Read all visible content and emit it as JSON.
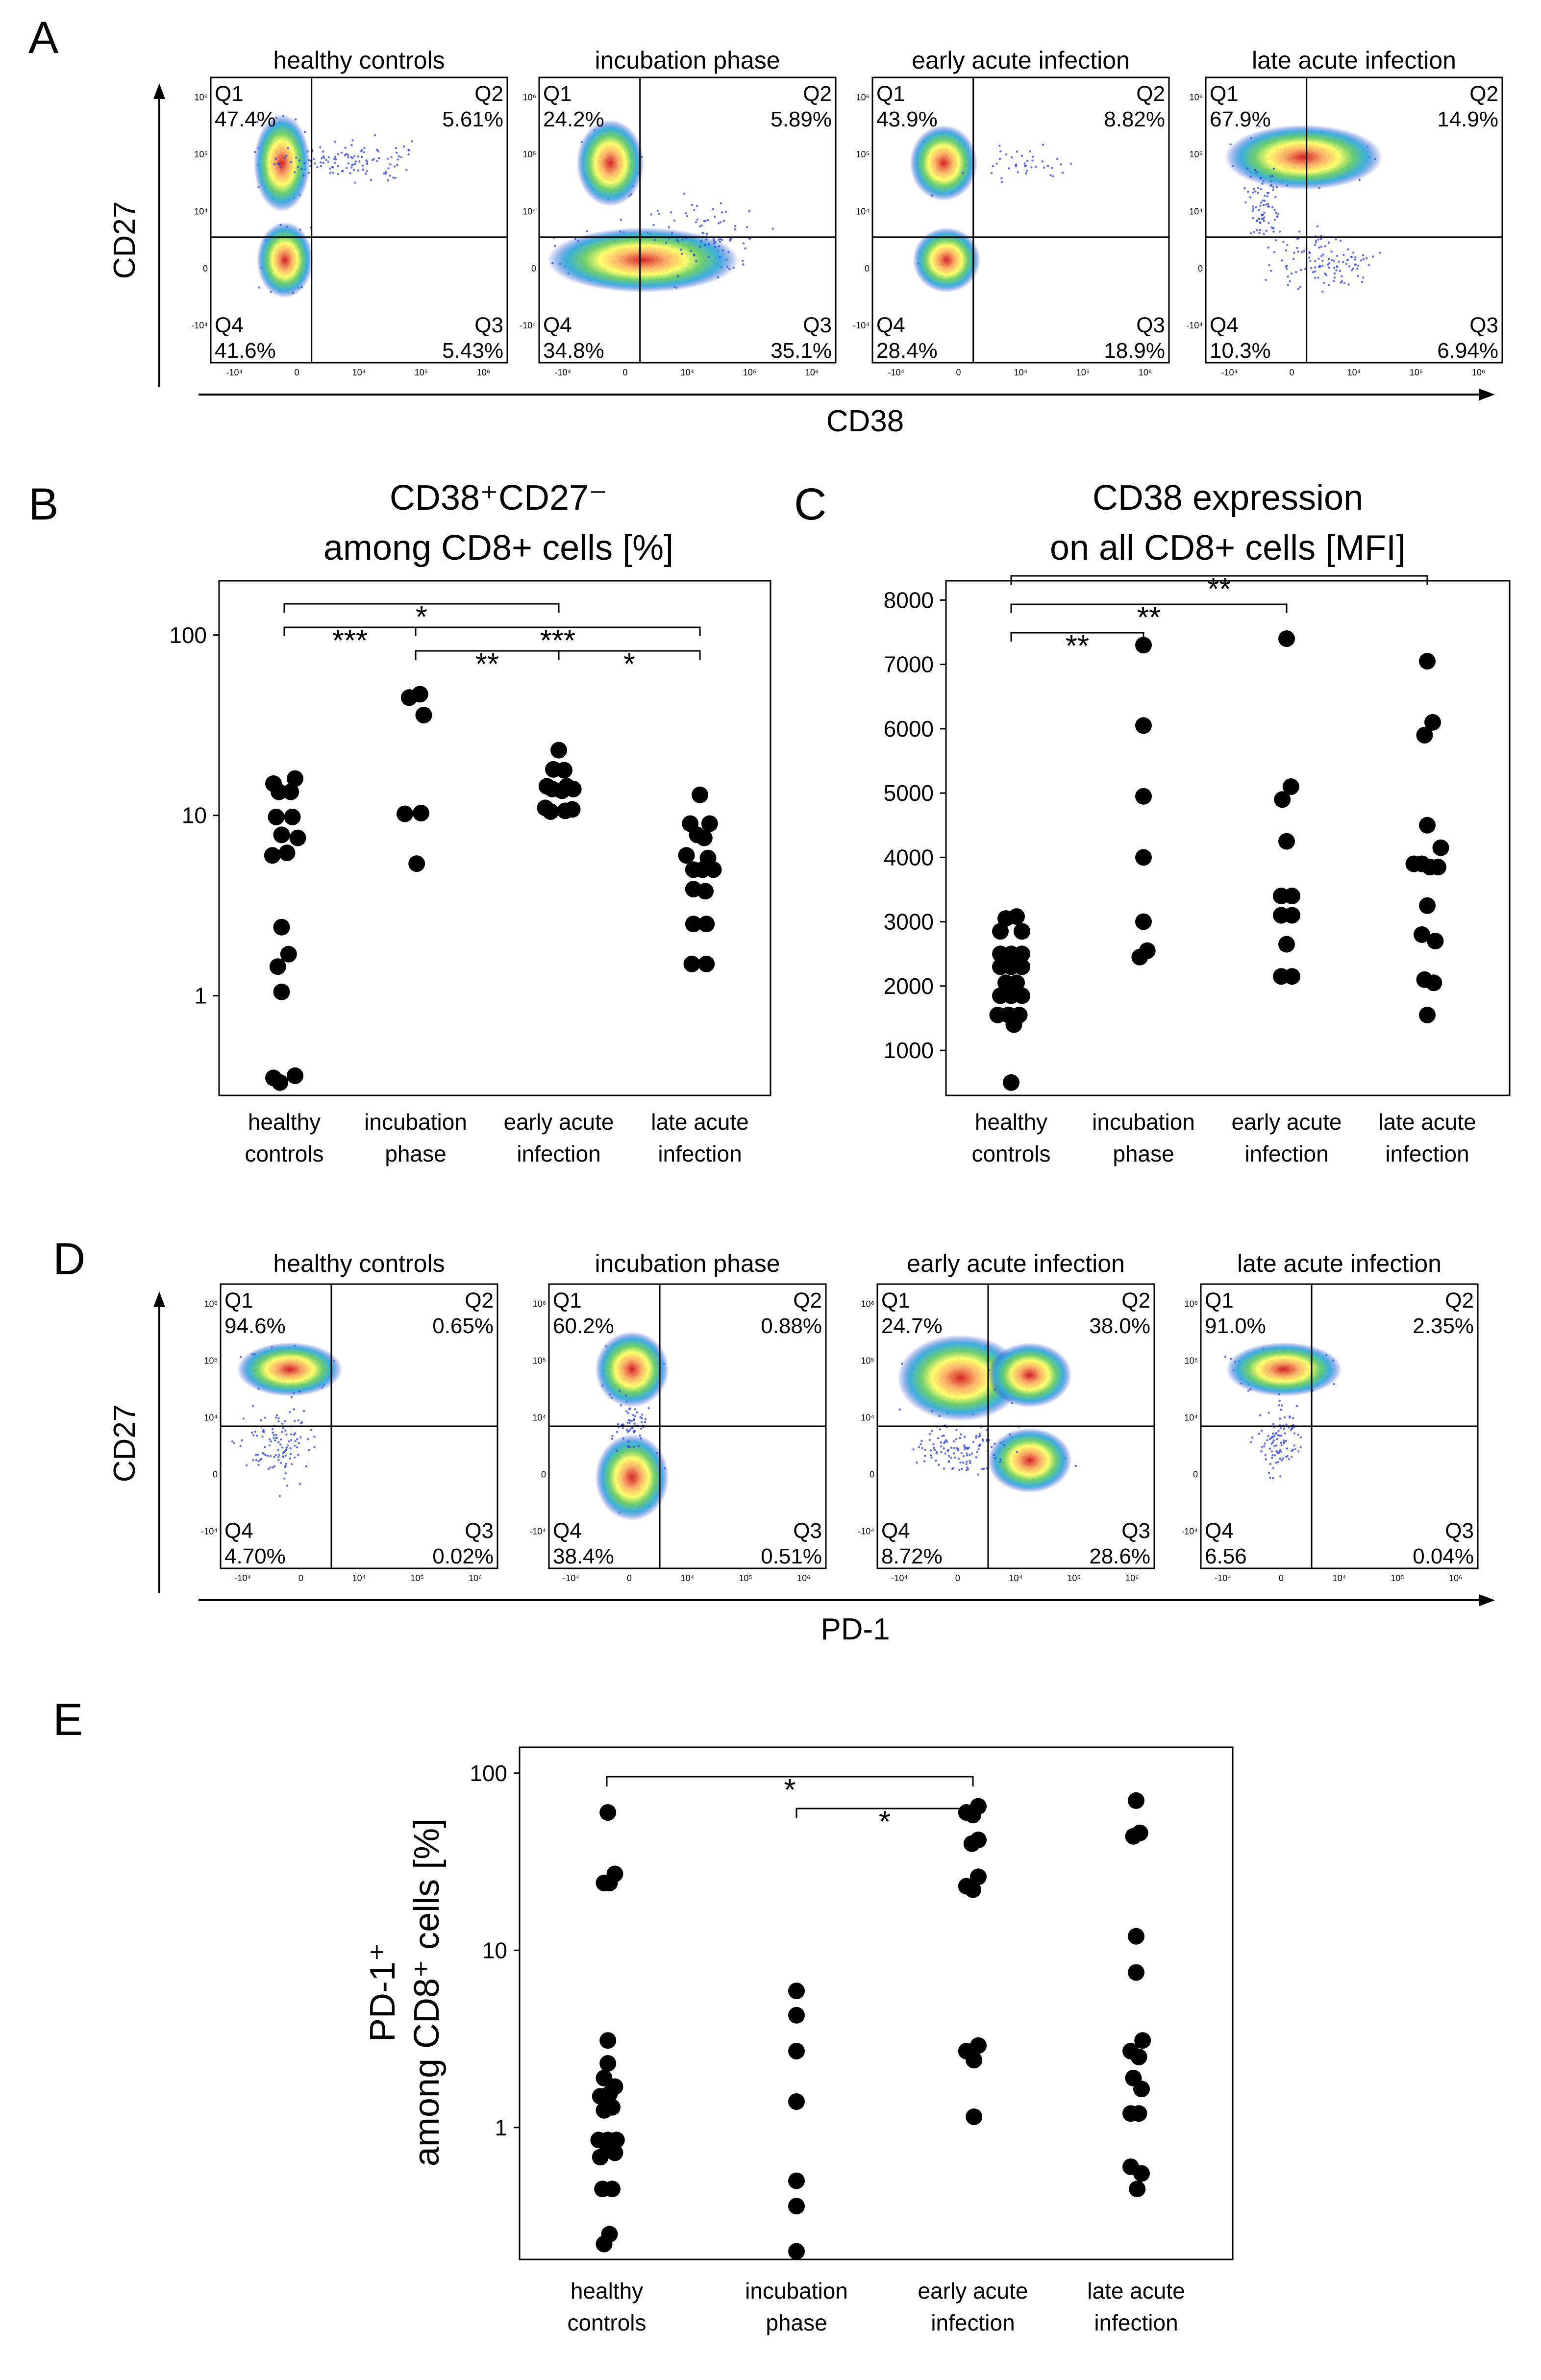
{
  "panel_labels": {
    "A": "A",
    "B": "B",
    "C": "C",
    "D": "D",
    "E": "E"
  },
  "flow_A": {
    "x_axis_label": "CD38",
    "y_axis_label": "CD27",
    "y_ticks": [
      "10⁶",
      "10⁵",
      "10⁴",
      "0",
      "-10⁴"
    ],
    "x_ticks": [
      "-10⁴",
      "0",
      "10⁴",
      "10⁵",
      "10⁶"
    ],
    "plots": [
      {
        "title": "healthy controls",
        "q1": "Q1",
        "q1v": "47.4%",
        "q2": "Q2",
        "q2v": "5.61%",
        "q3": "Q3",
        "q3v": "5.43%",
        "q4": "Q4",
        "q4v": "41.6%"
      },
      {
        "title": "incubation phase",
        "q1": "Q1",
        "q1v": "24.2%",
        "q2": "Q2",
        "q2v": "5.89%",
        "q3": "Q3",
        "q3v": "35.1%",
        "q4": "Q4",
        "q4v": "34.8%"
      },
      {
        "title": "early acute infection",
        "q1": "Q1",
        "q1v": "43.9%",
        "q2": "Q2",
        "q2v": "8.82%",
        "q3": "Q3",
        "q3v": "18.9%",
        "q4": "Q4",
        "q4v": "28.4%"
      },
      {
        "title": "late acute infection",
        "q1": "Q1",
        "q1v": "67.9%",
        "q2": "Q2",
        "q2v": "14.9%",
        "q3": "Q3",
        "q3v": "6.94%",
        "q4": "Q4",
        "q4v": "10.3%"
      }
    ]
  },
  "flow_D": {
    "x_axis_label": "PD-1",
    "y_axis_label": "CD27",
    "y_ticks": [
      "10⁶",
      "10⁵",
      "10⁴",
      "0",
      "-10⁴"
    ],
    "x_ticks": [
      "-10⁴",
      "0",
      "10⁴",
      "10⁵",
      "10⁶"
    ],
    "plots": [
      {
        "title": "healthy controls",
        "q1": "Q1",
        "q1v": "94.6%",
        "q2": "Q2",
        "q2v": "0.65%",
        "q3": "Q3",
        "q3v": "0.02%",
        "q4": "Q4",
        "q4v": "4.70%"
      },
      {
        "title": "incubation phase",
        "q1": "Q1",
        "q1v": "60.2%",
        "q2": "Q2",
        "q2v": "0.88%",
        "q3": "Q3",
        "q3v": "0.51%",
        "q4": "Q4",
        "q4v": "38.4%"
      },
      {
        "title": "early acute infection",
        "q1": "Q1",
        "q1v": "24.7%",
        "q2": "Q2",
        "q2v": "38.0%",
        "q3": "Q3",
        "q3v": "28.6%",
        "q4": "Q4",
        "q4v": "8.72%"
      },
      {
        "title": "late acute infection",
        "q1": "Q1",
        "q1v": "91.0%",
        "q2": "Q2",
        "q2v": "2.35%",
        "q3": "Q3",
        "q3v": "0.04%",
        "q4": "Q4",
        "q4v": "6.56"
      }
    ]
  },
  "chart_data": [
    {
      "id": "B",
      "type": "scatter",
      "title_line1": "CD38⁺CD27⁻",
      "title_line2": "among CD8+ cells [%]",
      "yscale": "log",
      "ylim": [
        0.28,
        200
      ],
      "yticks": [
        {
          "v": 1,
          "label": "1"
        },
        {
          "v": 10,
          "label": "10"
        },
        {
          "v": 100,
          "label": "100"
        }
      ],
      "categories": [
        [
          "healthy",
          "controls"
        ],
        [
          "incubation",
          "phase"
        ],
        [
          "early acute",
          "infection"
        ],
        [
          "late acute",
          "infection"
        ]
      ],
      "groups": [
        {
          "name": "healthy controls",
          "points": [
            [
              -0.2,
              15
            ],
            [
              0.2,
              16
            ],
            [
              -0.1,
              13.5
            ],
            [
              0.12,
              13.5
            ],
            [
              -0.15,
              9.8
            ],
            [
              0.15,
              9.8
            ],
            [
              -0.05,
              7.8
            ],
            [
              0.25,
              7.5
            ],
            [
              -0.22,
              6
            ],
            [
              0.05,
              6.2
            ],
            [
              -0.05,
              2.4
            ],
            [
              0.08,
              1.7
            ],
            [
              -0.12,
              1.45
            ],
            [
              -0.05,
              1.05
            ],
            [
              -0.2,
              0.35
            ],
            [
              -0.08,
              0.33
            ],
            [
              0.2,
              0.36
            ]
          ]
        },
        {
          "name": "incubation phase",
          "points": [
            [
              -0.12,
              45
            ],
            [
              0.08,
              47
            ],
            [
              0.15,
              36
            ],
            [
              -0.2,
              10.2
            ],
            [
              0.1,
              10.3
            ],
            [
              0.02,
              5.4
            ]
          ]
        },
        {
          "name": "early acute infection",
          "points": [
            [
              0,
              23
            ],
            [
              -0.1,
              18
            ],
            [
              0.1,
              17.8
            ],
            [
              -0.22,
              14.5
            ],
            [
              0.15,
              14.5
            ],
            [
              0.27,
              14
            ],
            [
              -0.12,
              14
            ],
            [
              0.06,
              13.7
            ],
            [
              -0.25,
              11
            ],
            [
              0.25,
              10.8
            ],
            [
              -0.15,
              10.5
            ],
            [
              0.12,
              10.6
            ]
          ]
        },
        {
          "name": "late acute infection",
          "points": [
            [
              0,
              13
            ],
            [
              -0.18,
              9
            ],
            [
              0.18,
              9
            ],
            [
              -0.05,
              7.8
            ],
            [
              0.08,
              7.5
            ],
            [
              -0.25,
              6
            ],
            [
              0.15,
              5.8
            ],
            [
              -0.12,
              5
            ],
            [
              0.05,
              5
            ],
            [
              0.25,
              5
            ],
            [
              -0.12,
              3.9
            ],
            [
              0.1,
              3.8
            ],
            [
              -0.12,
              2.5
            ],
            [
              0.12,
              2.5
            ],
            [
              -0.15,
              1.5
            ],
            [
              0.12,
              1.5
            ]
          ]
        }
      ],
      "brackets": [
        {
          "from": 0,
          "to": 2,
          "level": 0,
          "label": "*"
        },
        {
          "from": 0,
          "to": 1,
          "level": 1,
          "label": "***"
        },
        {
          "from": 1,
          "to": 3,
          "level": 1,
          "label": "***"
        },
        {
          "from": 1,
          "to": 2,
          "level": 2,
          "label": "**"
        },
        {
          "from": 2,
          "to": 3,
          "level": 2,
          "label": "*"
        }
      ]
    },
    {
      "id": "C",
      "type": "scatter",
      "title_line1": "CD38 expression",
      "title_line2": "on all CD8+ cells [MFI]",
      "yscale": "linear",
      "ylim": [
        300,
        8300
      ],
      "yticks": [
        {
          "v": 1000,
          "label": "1000"
        },
        {
          "v": 2000,
          "label": "2000"
        },
        {
          "v": 3000,
          "label": "3000"
        },
        {
          "v": 4000,
          "label": "4000"
        },
        {
          "v": 5000,
          "label": "5000"
        },
        {
          "v": 6000,
          "label": "6000"
        },
        {
          "v": 7000,
          "label": "7000"
        },
        {
          "v": 8000,
          "label": "8000"
        }
      ],
      "categories": [
        [
          "healthy",
          "controls"
        ],
        [
          "incubation",
          "phase"
        ],
        [
          "early acute",
          "infection"
        ],
        [
          "late acute",
          "infection"
        ]
      ],
      "groups": [
        {
          "name": "healthy controls",
          "points": [
            [
              -0.1,
              3050
            ],
            [
              0.1,
              3080
            ],
            [
              -0.2,
              2850
            ],
            [
              0.2,
              2850
            ],
            [
              -0.2,
              2500
            ],
            [
              0,
              2500
            ],
            [
              0.2,
              2500
            ],
            [
              -0.2,
              2300
            ],
            [
              0,
              2300
            ],
            [
              0.2,
              2300
            ],
            [
              -0.1,
              2050
            ],
            [
              0.1,
              2050
            ],
            [
              -0.2,
              1850
            ],
            [
              0,
              1850
            ],
            [
              0.2,
              1850
            ],
            [
              -0.25,
              1550
            ],
            [
              -0.05,
              1550
            ],
            [
              0.15,
              1550
            ],
            [
              0.05,
              1400
            ],
            [
              0,
              500
            ]
          ]
        },
        {
          "name": "incubation phase",
          "points": [
            [
              0,
              7300
            ],
            [
              0,
              6050
            ],
            [
              0,
              4950
            ],
            [
              0,
              4000
            ],
            [
              0,
              3000
            ],
            [
              -0.07,
              2450
            ],
            [
              0.07,
              2550
            ]
          ]
        },
        {
          "name": "early acute infection",
          "points": [
            [
              0,
              7400
            ],
            [
              0.08,
              5100
            ],
            [
              -0.08,
              4900
            ],
            [
              0,
              4250
            ],
            [
              -0.1,
              3400
            ],
            [
              0.1,
              3400
            ],
            [
              -0.1,
              3100
            ],
            [
              0.1,
              3100
            ],
            [
              0,
              2650
            ],
            [
              -0.1,
              2150
            ],
            [
              0.1,
              2150
            ]
          ]
        },
        {
          "name": "late acute infection",
          "points": [
            [
              0,
              7050
            ],
            [
              0.1,
              6100
            ],
            [
              -0.05,
              5900
            ],
            [
              0,
              4500
            ],
            [
              0.25,
              4150
            ],
            [
              -0.25,
              3900
            ],
            [
              -0.1,
              3900
            ],
            [
              0.05,
              3850
            ],
            [
              0.2,
              3850
            ],
            [
              0,
              3250
            ],
            [
              -0.1,
              2800
            ],
            [
              0.15,
              2700
            ],
            [
              -0.05,
              2100
            ],
            [
              0.12,
              2050
            ],
            [
              0,
              1550
            ]
          ]
        }
      ],
      "brackets": [
        {
          "from": 0,
          "to": 3,
          "level": 0,
          "label": "**"
        },
        {
          "from": 0,
          "to": 2,
          "level": 1,
          "label": "**"
        },
        {
          "from": 0,
          "to": 1,
          "level": 2,
          "label": "**"
        }
      ]
    },
    {
      "id": "E",
      "type": "scatter",
      "y_label_line1": "PD-1⁺",
      "y_label_line2": "among CD8⁺ cells [%]",
      "yscale": "log",
      "ylim": [
        0.18,
        140
      ],
      "yticks": [
        {
          "v": 1,
          "label": "1"
        },
        {
          "v": 10,
          "label": "10"
        },
        {
          "v": 100,
          "label": "100"
        }
      ],
      "categories": [
        [
          "healthy",
          "controls"
        ],
        [
          "incubation",
          "phase"
        ],
        [
          "early acute",
          "infection"
        ],
        [
          "late acute",
          "infection"
        ]
      ],
      "groups": [
        {
          "name": "healthy controls",
          "points": [
            [
              0.02,
              60
            ],
            [
              0.15,
              27
            ],
            [
              -0.05,
              24
            ],
            [
              0.05,
              24
            ],
            [
              0.02,
              3.1
            ],
            [
              0.02,
              2.3
            ],
            [
              -0.05,
              1.9
            ],
            [
              0.15,
              1.7
            ],
            [
              -0.12,
              1.5
            ],
            [
              0.05,
              1.55
            ],
            [
              -0.05,
              1.25
            ],
            [
              0.1,
              1.3
            ],
            [
              -0.15,
              0.85
            ],
            [
              0.02,
              0.85
            ],
            [
              0.18,
              0.85
            ],
            [
              -0.12,
              0.68
            ],
            [
              0.02,
              0.75
            ],
            [
              0.15,
              0.72
            ],
            [
              -0.08,
              0.45
            ],
            [
              0.1,
              0.45
            ],
            [
              0.05,
              0.25
            ],
            [
              -0.05,
              0.22
            ]
          ]
        },
        {
          "name": "incubation phase",
          "points": [
            [
              0,
              5.9
            ],
            [
              0,
              4.3
            ],
            [
              0,
              2.7
            ],
            [
              0,
              1.4
            ],
            [
              0,
              0.5
            ],
            [
              0,
              0.36
            ],
            [
              0,
              0.2
            ]
          ]
        },
        {
          "name": "early acute infection",
          "points": [
            [
              0.1,
              65
            ],
            [
              -0.12,
              60
            ],
            [
              0,
              58
            ],
            [
              -0.02,
              40
            ],
            [
              0.1,
              42
            ],
            [
              -0.12,
              23
            ],
            [
              0,
              22
            ],
            [
              0.1,
              26
            ],
            [
              -0.12,
              2.7
            ],
            [
              0.1,
              2.9
            ],
            [
              0.02,
              2.4
            ],
            [
              0.02,
              1.15
            ]
          ]
        },
        {
          "name": "late acute infection",
          "points": [
            [
              0,
              70
            ],
            [
              0.07,
              46
            ],
            [
              -0.05,
              44
            ],
            [
              0,
              12
            ],
            [
              0,
              7.5
            ],
            [
              0.12,
              3.1
            ],
            [
              -0.1,
              2.7
            ],
            [
              0.05,
              2.5
            ],
            [
              -0.05,
              1.9
            ],
            [
              0.1,
              1.65
            ],
            [
              -0.1,
              1.2
            ],
            [
              0.05,
              1.2
            ],
            [
              -0.1,
              0.6
            ],
            [
              0.1,
              0.55
            ],
            [
              0.02,
              0.45
            ]
          ]
        }
      ],
      "brackets": [
        {
          "from": 0,
          "to": 2,
          "level": 0,
          "label": "*"
        },
        {
          "from": 1,
          "to": 2,
          "level": 1,
          "label": "*"
        }
      ]
    }
  ]
}
